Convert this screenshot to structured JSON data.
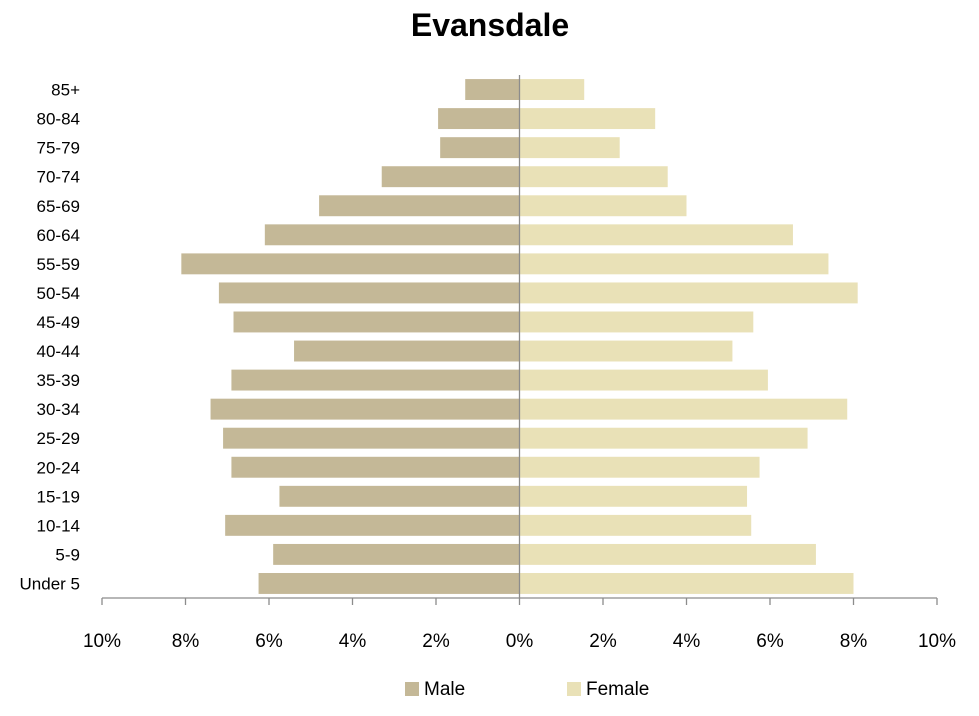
{
  "chart_data": {
    "type": "bar",
    "orientation": "horizontal",
    "title": "Evansdale",
    "categories": [
      "85+",
      "80-84",
      "75-79",
      "70-74",
      "65-69",
      "60-64",
      "55-59",
      "50-54",
      "45-49",
      "40-44",
      "35-39",
      "30-34",
      "25-29",
      "20-24",
      "15-19",
      "10-14",
      "5-9",
      "Under 5"
    ],
    "series": [
      {
        "name": "Male",
        "color": "#c4b897",
        "values": [
          1.3,
          1.95,
          1.9,
          3.3,
          4.8,
          6.1,
          8.1,
          7.2,
          6.85,
          5.4,
          6.9,
          7.4,
          7.1,
          6.9,
          5.75,
          7.05,
          5.9,
          6.25
        ]
      },
      {
        "name": "Female",
        "color": "#e9e1b7",
        "values": [
          1.55,
          3.25,
          2.4,
          3.55,
          4.0,
          6.55,
          7.4,
          8.1,
          5.6,
          5.1,
          5.95,
          7.85,
          6.9,
          5.75,
          5.45,
          5.55,
          7.1,
          8.0
        ]
      }
    ],
    "xlim": [
      -10,
      10
    ],
    "x_ticks": [
      -10,
      -8,
      -6,
      -4,
      -2,
      0,
      2,
      4,
      6,
      8,
      10
    ],
    "x_tick_labels": [
      "10%",
      "8%",
      "6%",
      "4%",
      "2%",
      "0%",
      "2%",
      "4%",
      "6%",
      "8%",
      "10%"
    ],
    "xlabel": "",
    "ylabel": "",
    "grid": false,
    "legend_position": "bottom"
  }
}
